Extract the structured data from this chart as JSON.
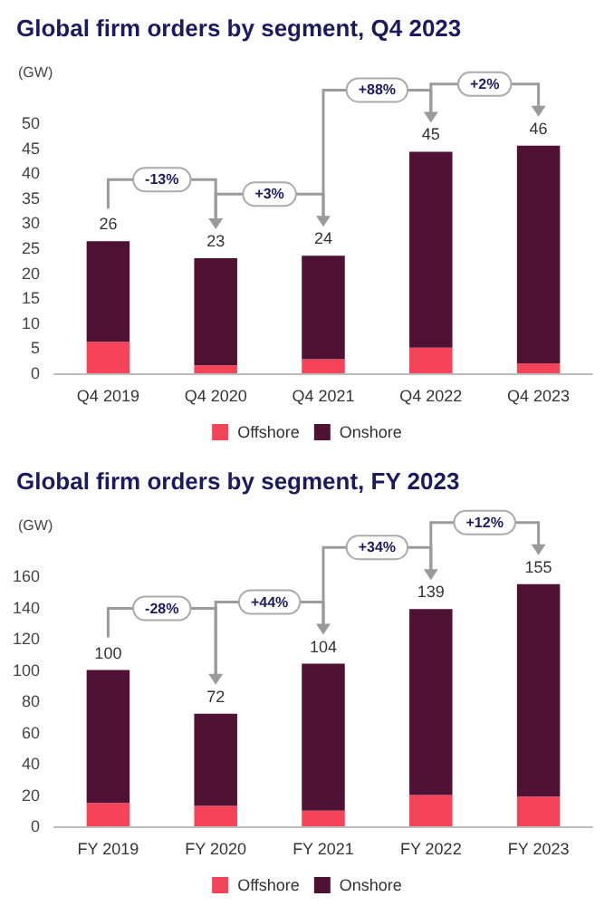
{
  "chart_data": [
    {
      "type": "bar",
      "title": "Global firm orders by segment, Q4 2023",
      "ylabel": "(GW)",
      "categories": [
        "Q4 2019",
        "Q4 2020",
        "Q4 2021",
        "Q4 2022",
        "Q4 2023"
      ],
      "stacked": true,
      "series": [
        {
          "name": "Offshore",
          "color": "#f5445a",
          "values": [
            6.3,
            1.6,
            2.8,
            5.1,
            2.0
          ]
        },
        {
          "name": "Onshore",
          "color": "#4f1234",
          "values": [
            20.1,
            21.4,
            20.7,
            39.2,
            43.5
          ]
        }
      ],
      "totals": [
        "26",
        "23",
        "24",
        "45",
        "46"
      ],
      "annotations": [
        "-13%",
        "+3%",
        "+88%",
        "+2%"
      ],
      "ylim": [
        0,
        50
      ],
      "yticks": [
        0,
        5,
        10,
        15,
        20,
        25,
        30,
        35,
        40,
        45,
        50
      ],
      "grid": false,
      "legend": "bottom"
    },
    {
      "type": "bar",
      "title": "Global firm orders by segment, FY 2023",
      "ylabel": "(GW)",
      "categories": [
        "FY 2019",
        "FY 2020",
        "FY 2021",
        "FY 2022",
        "FY 2023"
      ],
      "stacked": true,
      "series": [
        {
          "name": "Offshore",
          "color": "#f5445a",
          "values": [
            15,
            13,
            10,
            20,
            19
          ]
        },
        {
          "name": "Onshore",
          "color": "#4f1234",
          "values": [
            85,
            59,
            94,
            119,
            136
          ]
        }
      ],
      "totals": [
        "100",
        "72",
        "104",
        "139",
        "155"
      ],
      "annotations": [
        "-28%",
        "+44%",
        "+34%",
        "+12%"
      ],
      "ylim": [
        0,
        160
      ],
      "yticks": [
        0,
        20,
        40,
        60,
        80,
        100,
        120,
        140,
        160
      ],
      "grid": false,
      "legend": "bottom"
    }
  ]
}
